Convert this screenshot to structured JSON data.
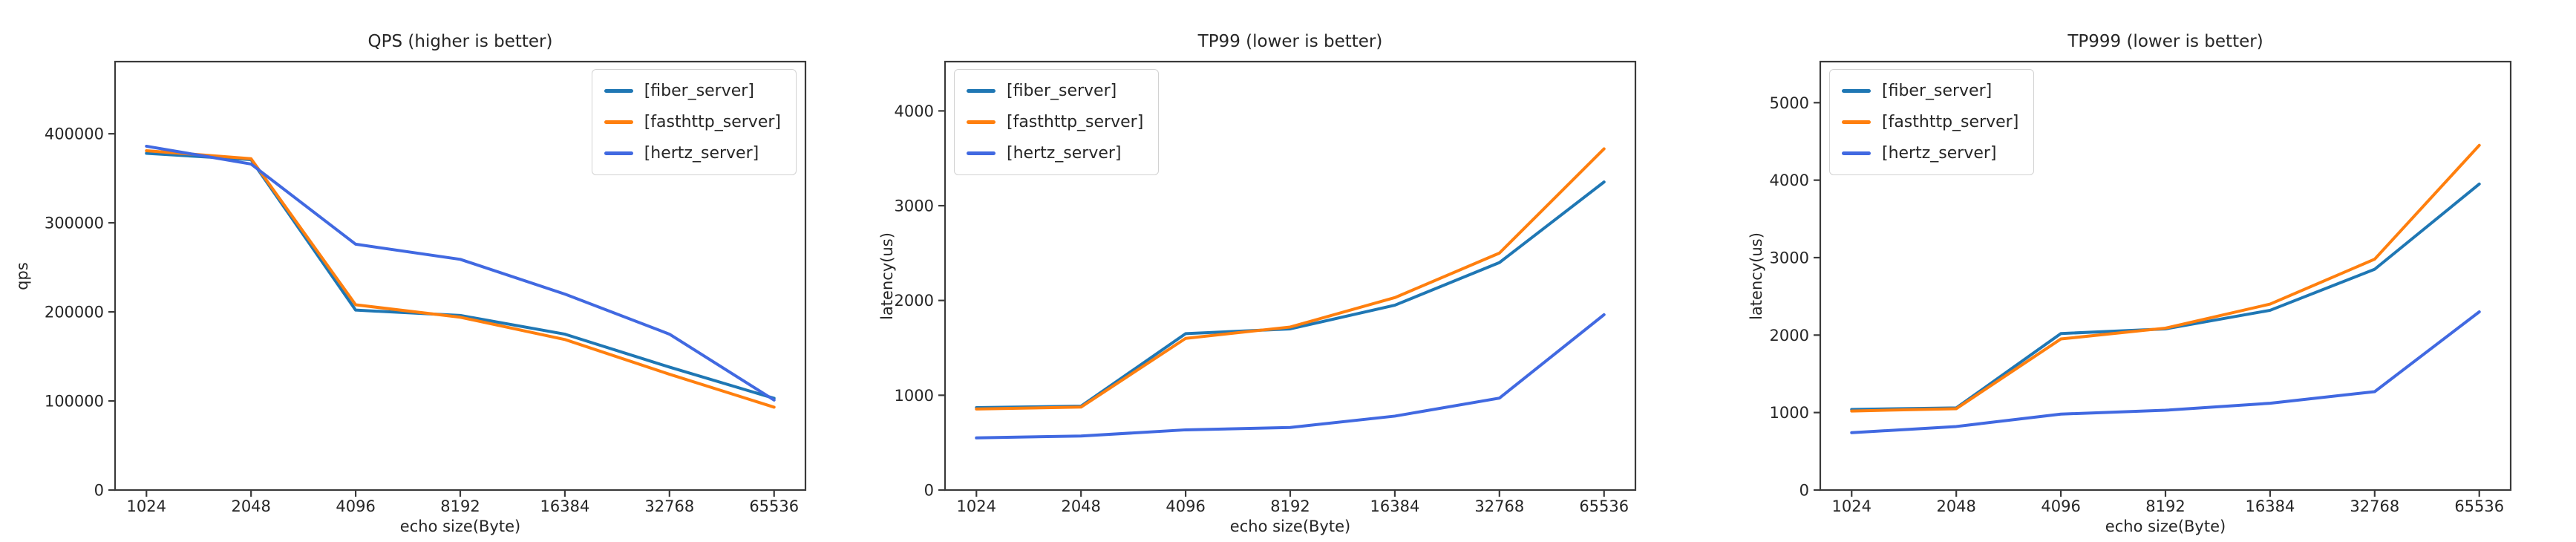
{
  "figure": {
    "background": "#ffffff",
    "text_color": "#262626",
    "spine_color": "#3a3a3a"
  },
  "chart_data": [
    {
      "type": "line",
      "title": "QPS (higher is better)",
      "xlabel": "echo size(Byte)",
      "ylabel": "qps",
      "categories": [
        "1024",
        "2048",
        "4096",
        "8192",
        "16384",
        "32768",
        "65536"
      ],
      "yticks": [
        0,
        100000,
        200000,
        300000,
        400000
      ],
      "ylim": [
        0,
        481000
      ],
      "grid": false,
      "legend_position": "upper-right",
      "series": [
        {
          "name": "[fiber_server]",
          "color": "#1f77b4",
          "values": [
            378000,
            371000,
            202000,
            196000,
            175000,
            138000,
            103000
          ]
        },
        {
          "name": "[fasthttp_server]",
          "color": "#ff7f0e",
          "values": [
            381000,
            372000,
            208000,
            194000,
            169000,
            130000,
            93000
          ]
        },
        {
          "name": "[hertz_server]",
          "color": "#4169e1",
          "values": [
            386000,
            366000,
            276000,
            259000,
            220000,
            175000,
            101000
          ]
        }
      ]
    },
    {
      "type": "line",
      "title": "TP99 (lower is better)",
      "xlabel": "echo size(Byte)",
      "ylabel": "latency(us)",
      "categories": [
        "1024",
        "2048",
        "4096",
        "8192",
        "16384",
        "32768",
        "65536"
      ],
      "yticks": [
        0,
        1000,
        2000,
        3000,
        4000
      ],
      "ylim": [
        0,
        4520
      ],
      "grid": false,
      "legend_position": "upper-left",
      "series": [
        {
          "name": "[fiber_server]",
          "color": "#1f77b4",
          "values": [
            870,
            885,
            1650,
            1700,
            1950,
            2400,
            3250
          ]
        },
        {
          "name": "[fasthttp_server]",
          "color": "#ff7f0e",
          "values": [
            855,
            875,
            1600,
            1720,
            2030,
            2500,
            3600
          ]
        },
        {
          "name": "[hertz_server]",
          "color": "#4169e1",
          "values": [
            550,
            570,
            635,
            660,
            780,
            970,
            1850
          ]
        }
      ]
    },
    {
      "type": "line",
      "title": "TP999 (lower is better)",
      "xlabel": "echo size(Byte)",
      "ylabel": "latency(us)",
      "categories": [
        "1024",
        "2048",
        "4096",
        "8192",
        "16384",
        "32768",
        "65536"
      ],
      "yticks": [
        0,
        1000,
        2000,
        3000,
        4000,
        5000
      ],
      "ylim": [
        0,
        5530
      ],
      "grid": false,
      "legend_position": "upper-left",
      "series": [
        {
          "name": "[fiber_server]",
          "color": "#1f77b4",
          "values": [
            1040,
            1060,
            2020,
            2080,
            2320,
            2850,
            3950
          ]
        },
        {
          "name": "[fasthttp_server]",
          "color": "#ff7f0e",
          "values": [
            1020,
            1050,
            1950,
            2090,
            2400,
            2980,
            4450
          ]
        },
        {
          "name": "[hertz_server]",
          "color": "#4169e1",
          "values": [
            740,
            820,
            980,
            1030,
            1120,
            1270,
            2300
          ]
        }
      ]
    }
  ]
}
